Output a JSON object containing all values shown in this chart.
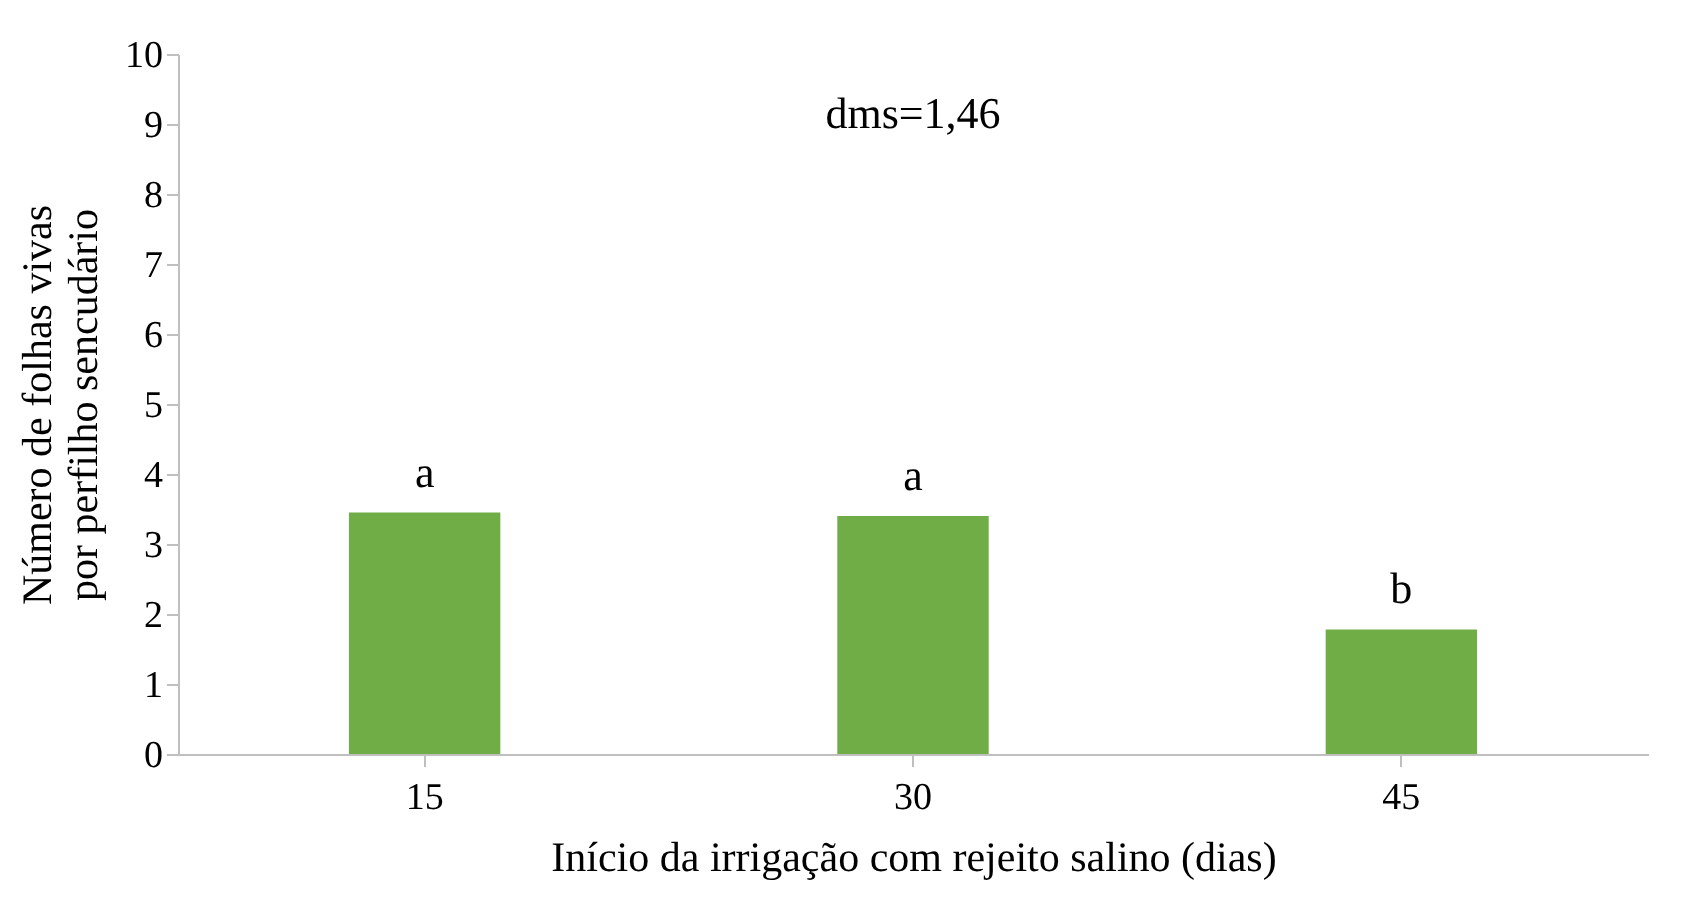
{
  "chart_data": {
    "type": "bar",
    "xlabel": "Início da irrigação com rejeito salino (dias)",
    "ylabel": "Número de folhas vivas por perfilho sencudário",
    "categories": [
      "15",
      "30",
      "45"
    ],
    "values": [
      3.45,
      3.4,
      1.78
    ],
    "color": "#70ad47",
    "ylim": [
      0,
      10
    ],
    "yticks": [
      0,
      1,
      2,
      3,
      4,
      5,
      6,
      7,
      8,
      9,
      10
    ],
    "grid": false,
    "annotations": [
      {
        "text": "a",
        "x": "15",
        "y": 3.45
      },
      {
        "text": "a",
        "x": "30",
        "y": 3.4
      },
      {
        "text": "b",
        "x": "45",
        "y": 1.78
      },
      "dms=1,46"
    ]
  }
}
